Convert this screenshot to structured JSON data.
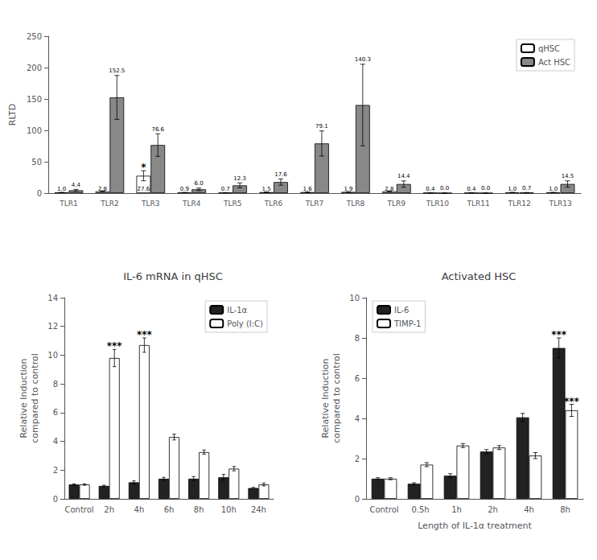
{
  "chart_data": [
    {
      "type": "bar",
      "categories": [
        "TLR1",
        "TLR2",
        "TLR3",
        "TLR4",
        "TLR5",
        "TLR6",
        "TLR7",
        "TLR8",
        "TLR9",
        "TLR10",
        "TLR11",
        "TLR12",
        "TLR13"
      ],
      "series": [
        {
          "name": "qHSC",
          "color": "white",
          "values": [
            1.0,
            2.8,
            27.6,
            0.9,
            0.7,
            1.5,
            1.6,
            1.9,
            2.8,
            0.4,
            0.4,
            1.0,
            1.0
          ],
          "errors": [
            0.3,
            0.5,
            8.0,
            0.2,
            0.1,
            0.3,
            0.2,
            0.2,
            0.5,
            0.1,
            0.1,
            0.2,
            0.3
          ],
          "value_labels": [
            "1.0",
            "2.8",
            "27.6",
            "0.9",
            "0.7",
            "1.5",
            "1.6",
            "1.9",
            "2.8",
            "0.4",
            "0.4",
            "1.0",
            "1.0"
          ]
        },
        {
          "name": "Act HSC",
          "color": "#888888",
          "values": [
            4.4,
            152.5,
            76.6,
            6.0,
            12.3,
            17.6,
            79.1,
            140.3,
            14.4,
            0.0,
            0.0,
            0.7,
            14.5
          ],
          "errors": [
            1.5,
            35.0,
            18.0,
            2.0,
            4.0,
            5.0,
            20.0,
            65.0,
            5.0,
            0.1,
            0.1,
            0.3,
            5.0
          ],
          "value_labels": [
            "4.4",
            "152.5",
            "76.6",
            "6.0",
            "12.3",
            "17.6",
            "79.1",
            "140.3",
            "14.4",
            "0.0",
            "0.0",
            "0.7",
            "14.5"
          ]
        }
      ],
      "ylabel": "RLTD",
      "ylim": [
        0,
        250
      ],
      "yticks": [
        0,
        50,
        100,
        150,
        200,
        250
      ],
      "data_labels": true,
      "annotations": [
        {
          "category": "TLR3",
          "series": "qHSC",
          "text": "*"
        }
      ],
      "legend": "upper right",
      "grid": false
    },
    {
      "type": "bar",
      "title": "IL-6 mRNA in qHSC",
      "categories": [
        "Control",
        "2h",
        "4h",
        "6h",
        "8h",
        "10h",
        "24h"
      ],
      "series": [
        {
          "name": "IL-1α",
          "color": "#222222",
          "values": [
            1.0,
            0.9,
            1.15,
            1.4,
            1.4,
            1.5,
            0.75
          ],
          "errors": [
            0.05,
            0.05,
            0.1,
            0.1,
            0.15,
            0.2,
            0.05
          ]
        },
        {
          "name": "Poly (I:C)",
          "color": "white",
          "values": [
            1.0,
            9.8,
            10.7,
            4.3,
            3.25,
            2.1,
            1.0
          ],
          "errors": [
            0.05,
            0.6,
            0.5,
            0.2,
            0.15,
            0.15,
            0.1
          ]
        }
      ],
      "ylabel": "Relative Induction\ncompared to control",
      "ylim": [
        0,
        14
      ],
      "yticks": [
        0,
        2,
        4,
        6,
        8,
        10,
        12,
        14
      ],
      "annotations": [
        {
          "category": "2h",
          "series": "Poly (I:C)",
          "text": "***"
        },
        {
          "category": "4h",
          "series": "Poly (I:C)",
          "text": "***"
        }
      ],
      "legend": "upper right",
      "grid": false
    },
    {
      "type": "bar",
      "title": "Activated HSC",
      "categories": [
        "Control",
        "0.5h",
        "1h",
        "2h",
        "4h",
        "8h"
      ],
      "series": [
        {
          "name": "IL-6",
          "color": "#222222",
          "values": [
            1.0,
            0.75,
            1.15,
            2.35,
            4.05,
            7.5
          ],
          "errors": [
            0.05,
            0.05,
            0.1,
            0.1,
            0.2,
            0.5
          ]
        },
        {
          "name": "TIMP-1",
          "color": "white",
          "values": [
            1.0,
            1.7,
            2.65,
            2.55,
            2.15,
            4.4
          ],
          "errors": [
            0.05,
            0.1,
            0.1,
            0.1,
            0.15,
            0.3
          ]
        }
      ],
      "xlabel": "Length of IL-1α treatment",
      "ylabel": "Relative Induction\ncompared to control",
      "ylim": [
        0,
        10
      ],
      "yticks": [
        0,
        2,
        4,
        6,
        8,
        10
      ],
      "annotations": [
        {
          "category": "8h",
          "series": "IL-6",
          "text": "***"
        },
        {
          "category": "8h",
          "series": "TIMP-1",
          "text": "***"
        }
      ],
      "legend": "upper left",
      "grid": false
    }
  ]
}
